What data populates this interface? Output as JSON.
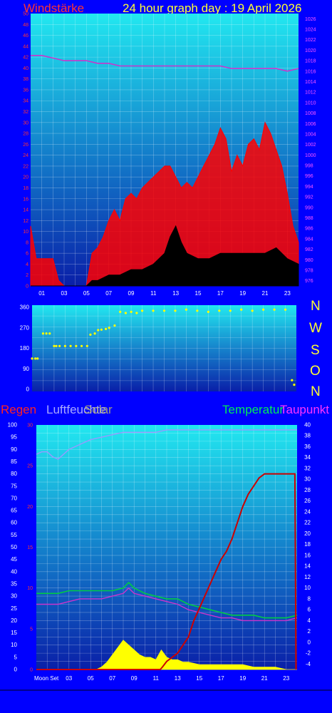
{
  "header": {
    "wind_label": "Windstärke",
    "title": "24 hour graph day : 19 April 2026"
  },
  "compass": [
    "N",
    "W",
    "S",
    "O",
    "N"
  ],
  "bottom_legend": {
    "regen": "Regen",
    "luftfeuchte": "Luftfeuchte",
    "solar": "Solar",
    "temperatur": "Temperatur",
    "taupunkt": "Taupunkt"
  },
  "moon_label": "Moon Set",
  "colors": {
    "background": "#0000ff",
    "wind_gust": "#ff0000",
    "wind_avg": "#000000",
    "pressure": "#cc33cc",
    "direction": "#ffff00",
    "rain": "#cc0000",
    "humidity": "#9999ff",
    "solar": "#ffff00",
    "temperature": "#00cc44",
    "dewpoint": "#cc33cc",
    "tick_left": "#ff3333",
    "tick_right": "#ff55ff"
  },
  "chart_data": [
    {
      "type": "area",
      "title": "Windstärke",
      "x_ticks": [
        "01",
        "03",
        "05",
        "07",
        "09",
        "11",
        "13",
        "15",
        "17",
        "19",
        "21",
        "23"
      ],
      "y_left_ticks": [
        0,
        2,
        4,
        6,
        8,
        10,
        12,
        14,
        16,
        18,
        20,
        22,
        24,
        26,
        28,
        30,
        32,
        34,
        36,
        38,
        40,
        42,
        44,
        46,
        48,
        50
      ],
      "y_right_ticks": [
        976,
        978,
        980,
        982,
        984,
        986,
        988,
        990,
        992,
        994,
        996,
        998,
        1000,
        1002,
        1004,
        1006,
        1008,
        1010,
        1012,
        1014,
        1016,
        1018,
        1020,
        1022,
        1024,
        1026
      ],
      "ylim_left": [
        0,
        50
      ],
      "ylim_right": [
        975,
        1027
      ],
      "series": [
        {
          "name": "gust",
          "hours": [
            0,
            0.5,
            1,
            1.5,
            2,
            2.5,
            3,
            4,
            5,
            5.5,
            6,
            6.5,
            7,
            7.5,
            8,
            8.5,
            9,
            9.5,
            10,
            10.5,
            11,
            11.5,
            12,
            12.5,
            13,
            13.5,
            14,
            14.5,
            15,
            15.5,
            16,
            16.5,
            17,
            17.5,
            18,
            18.5,
            19,
            19.5,
            20,
            20.5,
            21,
            21.5,
            22,
            22.5,
            23,
            23.5,
            24
          ],
          "values": [
            11,
            5,
            5,
            5,
            5,
            1,
            0,
            0,
            0,
            6,
            7,
            9,
            12,
            14,
            12,
            16,
            17,
            16,
            18,
            19,
            20,
            21,
            22,
            22,
            20,
            18,
            19,
            18,
            20,
            22,
            24,
            26,
            29,
            27,
            21,
            24,
            22,
            26,
            27,
            25,
            30,
            28,
            25,
            22,
            17,
            11,
            8
          ]
        },
        {
          "name": "average",
          "hours": [
            0,
            2,
            4,
            5,
            5.5,
            6,
            7,
            8,
            9,
            10,
            11,
            12,
            12.5,
            13,
            13.5,
            14,
            15,
            16,
            17,
            18,
            19,
            20,
            21,
            22,
            23,
            24
          ],
          "values": [
            0,
            0,
            0,
            0,
            1,
            1,
            2,
            2,
            3,
            3,
            4,
            6,
            9,
            11,
            8,
            6,
            5,
            5,
            6,
            6,
            6,
            6,
            6,
            7,
            5,
            4
          ]
        },
        {
          "name": "pressure",
          "hours": [
            0,
            1,
            2,
            3,
            4,
            5,
            6,
            7,
            8,
            9,
            10,
            11,
            12,
            13,
            14,
            15,
            16,
            17,
            18,
            19,
            20,
            21,
            22,
            23,
            24
          ],
          "values": [
            1019,
            1019,
            1018.5,
            1018,
            1018,
            1018,
            1017.5,
            1017.5,
            1017,
            1017,
            1017,
            1017,
            1017,
            1017,
            1017,
            1017,
            1017,
            1017,
            1016.5,
            1016.5,
            1016.5,
            1016.5,
            1016.5,
            1016,
            1016.5
          ]
        }
      ]
    },
    {
      "type": "scatter",
      "title": "",
      "x_ticks": [
        "01",
        "03",
        "05",
        "07",
        "09",
        "11",
        "13",
        "15",
        "17",
        "19",
        "21",
        "23"
      ],
      "y_ticks": [
        0,
        90,
        180,
        270,
        360
      ],
      "ylim": [
        0,
        360
      ],
      "series": [
        {
          "name": "direction",
          "hours": [
            0,
            0.3,
            0.5,
            1,
            1.3,
            1.6,
            2,
            2.2,
            2.5,
            3,
            3.5,
            4,
            4.5,
            5,
            5.3,
            5.7,
            6,
            6.3,
            6.7,
            7,
            7.5,
            8,
            8.5,
            9,
            9.5,
            10,
            11,
            12,
            13,
            14,
            15,
            16,
            17,
            18,
            19,
            20,
            21,
            22,
            23,
            23.6,
            23.8
          ],
          "values": [
            135,
            135,
            135,
            245,
            245,
            245,
            190,
            190,
            190,
            190,
            190,
            190,
            190,
            190,
            240,
            245,
            260,
            262,
            265,
            270,
            280,
            340,
            335,
            340,
            335,
            345,
            345,
            345,
            345,
            350,
            345,
            340,
            345,
            345,
            350,
            345,
            350,
            350,
            350,
            40,
            20
          ]
        }
      ]
    },
    {
      "type": "line",
      "title": "",
      "x_ticks": [
        "03",
        "05",
        "07",
        "09",
        "11",
        "13",
        "15",
        "17",
        "19",
        "21",
        "23"
      ],
      "y_humidity_ticks": [
        0,
        5,
        10,
        15,
        20,
        25,
        30,
        35,
        40,
        45,
        50,
        55,
        60,
        65,
        70,
        75,
        80,
        85,
        90,
        95,
        100
      ],
      "y_rain_ticks": [
        0,
        5,
        10,
        15,
        20,
        25,
        30
      ],
      "y_temp_ticks": [
        -4,
        -2,
        0,
        2,
        4,
        6,
        8,
        10,
        12,
        14,
        16,
        18,
        20,
        22,
        24,
        26,
        28,
        30,
        32,
        34,
        36,
        38,
        40
      ],
      "ylim_humidity": [
        0,
        100
      ],
      "ylim_rain": [
        0,
        30
      ],
      "ylim_temp": [
        -5,
        40
      ],
      "series": [
        {
          "name": "Regen",
          "hours": [
            0,
            10,
            11.4,
            11.6,
            12,
            12.5,
            13,
            13.5,
            14,
            14.5,
            15,
            15.5,
            16,
            16.5,
            17,
            17.5,
            18,
            18.5,
            19,
            19.5,
            20,
            20.5,
            21,
            22,
            23,
            23.8,
            23.9
          ],
          "values": [
            0,
            0,
            0,
            0.3,
            1,
            1.5,
            2,
            3,
            4,
            6,
            7.5,
            9,
            10.5,
            12,
            13.5,
            14.5,
            16,
            18,
            20,
            21.5,
            22.5,
            23.5,
            24,
            24,
            24,
            24,
            0
          ]
        },
        {
          "name": "Luftfeuchte",
          "hours": [
            0,
            0.5,
            1,
            1.5,
            2,
            2.5,
            3,
            3.5,
            4,
            5,
            6,
            7,
            8,
            9,
            10,
            11,
            12,
            13,
            14,
            15,
            16,
            17,
            18,
            19,
            20,
            21,
            22,
            23,
            24
          ],
          "values": [
            88,
            89,
            89,
            87,
            86,
            88,
            90,
            91,
            92,
            94,
            95,
            96,
            97,
            97,
            97,
            97,
            98,
            98,
            98,
            98,
            98,
            98,
            98,
            98,
            98,
            98,
            98,
            98,
            98
          ]
        },
        {
          "name": "Solar",
          "hours": [
            0,
            5.5,
            6,
            6.5,
            7,
            7.5,
            8,
            8.5,
            9,
            9.5,
            10,
            10.5,
            11,
            11.5,
            12,
            12.5,
            13,
            13.5,
            14,
            15,
            16,
            17,
            18,
            19,
            20,
            21,
            22,
            23,
            23.5,
            24
          ],
          "values": [
            0,
            0,
            1,
            3,
            6,
            9,
            12,
            10,
            8,
            6,
            5,
            5,
            4,
            8,
            5,
            4,
            4,
            3,
            3,
            2,
            2,
            2,
            2,
            2,
            1,
            1,
            1,
            0,
            0,
            0
          ]
        },
        {
          "name": "Temperatur",
          "hours": [
            0,
            1,
            2,
            3,
            4,
            5,
            6,
            7,
            8,
            8.5,
            9,
            10,
            11,
            12,
            13,
            14,
            15,
            16,
            17,
            18,
            19,
            20,
            21,
            22,
            23,
            24
          ],
          "values": [
            9,
            9,
            9,
            9.5,
            9.5,
            9.5,
            9.5,
            9.5,
            10,
            11,
            10,
            9,
            8.5,
            8,
            8,
            7,
            6.5,
            6,
            5.5,
            5,
            5,
            5,
            4.5,
            4.5,
            4.5,
            5
          ]
        },
        {
          "name": "Taupunkt",
          "hours": [
            0,
            1,
            2,
            3,
            4,
            5,
            6,
            7,
            8,
            8.5,
            9,
            10,
            11,
            12,
            13,
            14,
            15,
            16,
            17,
            18,
            19,
            20,
            21,
            22,
            23,
            24
          ],
          "values": [
            7,
            7,
            7,
            7.5,
            8,
            8,
            8,
            8.5,
            9,
            10,
            9,
            8.5,
            8,
            7.5,
            7,
            6,
            5.5,
            5,
            4.5,
            4.5,
            4,
            4,
            4,
            4,
            4,
            4.5
          ]
        }
      ]
    }
  ]
}
